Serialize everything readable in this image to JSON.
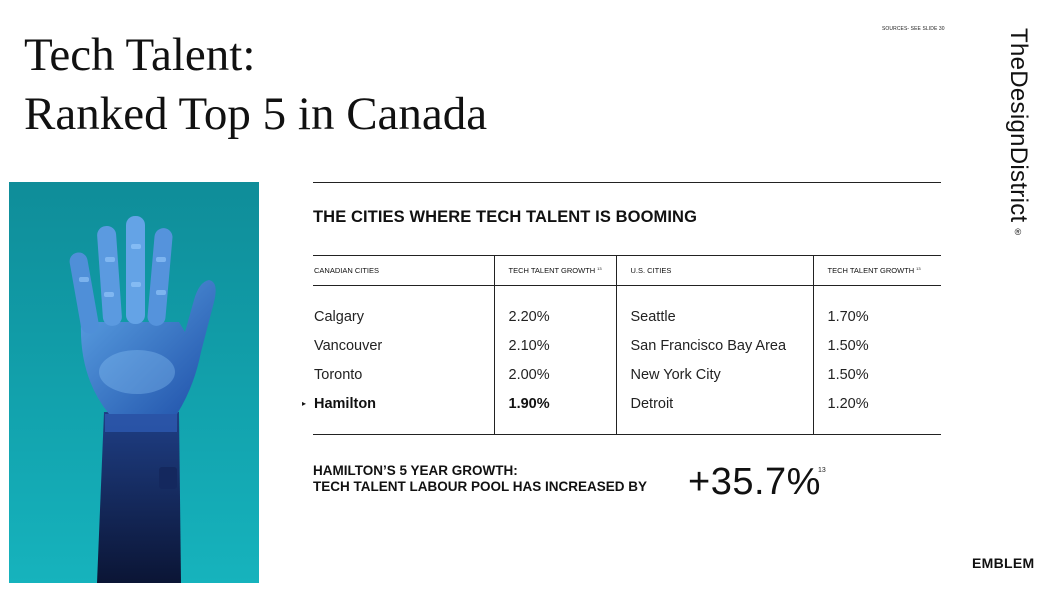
{
  "slide": {
    "title_lines": [
      "Tech Talent:",
      "Ranked Top 5 in Canada"
    ],
    "sources_note": "SOURCES- SEE SLIDE 30",
    "brand_vertical": "TheDesignDistrict",
    "brand_registered": "®",
    "footer_logo": "EMBLEM"
  },
  "photo": {
    "subject": "robotic-hand-icon",
    "background_color": "#12a2ad"
  },
  "section": {
    "heading": "THE CITIES WHERE TECH TALENT IS BOOMING"
  },
  "table": {
    "headers": {
      "canadian_cities": "CANADIAN CITIES",
      "canadian_growth": "TECH TALENT GROWTH",
      "canadian_growth_ref": "13",
      "us_cities": "U.S. CITIES",
      "us_growth": "TECH TALENT GROWTH",
      "us_growth_ref": "13"
    },
    "rows": [
      {
        "canadian_city": "Calgary",
        "canadian_growth": "2.20%",
        "us_city": "Seattle",
        "us_growth": "1.70%"
      },
      {
        "canadian_city": "Vancouver",
        "canadian_growth": "2.10%",
        "us_city": "San Francisco Bay Area",
        "us_growth": "1.50%"
      },
      {
        "canadian_city": "Toronto",
        "canadian_growth": "2.00%",
        "us_city": "New York City",
        "us_growth": "1.50%"
      },
      {
        "canadian_city": "Hamilton",
        "canadian_growth": "1.90%",
        "us_city": "Detroit",
        "us_growth": "1.20%"
      }
    ],
    "highlight_marker": "▸"
  },
  "callout": {
    "line1": "HAMILTON’S 5 YEAR GROWTH:",
    "line2": "TECH TALENT LABOUR POOL HAS INCREASED BY",
    "figure": "+35.7%",
    "figure_ref": "13"
  }
}
